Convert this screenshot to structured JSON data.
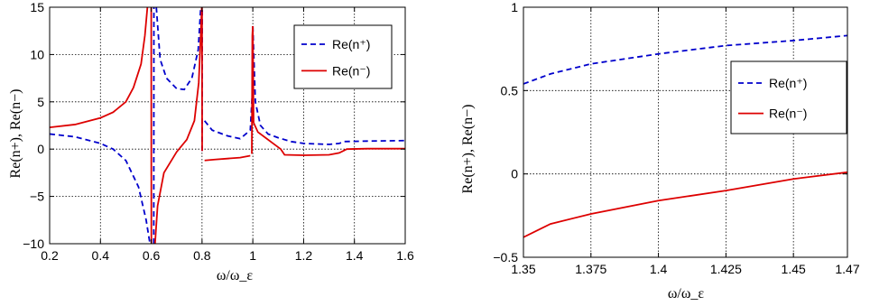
{
  "chart_data": [
    {
      "type": "line",
      "xlabel": "ω/ω_ε",
      "ylabel": "Re(n+), Re(n−)",
      "xlim": [
        0.2,
        1.6
      ],
      "ylim": [
        -10,
        15
      ],
      "xticks": [
        0.2,
        0.4,
        0.6,
        0.8,
        1,
        1.2,
        1.4,
        1.6
      ],
      "xtick_labels": [
        "0.2",
        "0.4",
        "0.6",
        "0.8",
        "1",
        "1.2",
        "1.4",
        "1.6"
      ],
      "yticks": [
        -10,
        -5,
        0,
        5,
        10,
        15
      ],
      "ytick_labels": [
        "−10",
        "−5",
        "0",
        "5",
        "10",
        "15"
      ],
      "grid": true,
      "legend_position": "top-right",
      "series": [
        {
          "name": "Re(n⁺)",
          "color": "#0000cc",
          "style": "dashed",
          "segments": [
            [
              [
                0.2,
                1.6
              ],
              [
                0.3,
                1.3
              ],
              [
                0.4,
                0.6
              ],
              [
                0.45,
                0
              ],
              [
                0.5,
                -1.2
              ],
              [
                0.55,
                -4
              ],
              [
                0.58,
                -7.5
              ],
              [
                0.595,
                -10
              ]
            ],
            [
              [
                0.61,
                -10
              ],
              [
                0.6105,
                15
              ]
            ],
            [
              [
                0.62,
                15
              ],
              [
                0.635,
                9.5
              ],
              [
                0.66,
                7.5
              ],
              [
                0.7,
                6.4
              ],
              [
                0.73,
                6.3
              ],
              [
                0.76,
                7.5
              ],
              [
                0.785,
                10.5
              ],
              [
                0.795,
                15
              ]
            ],
            [
              [
                0.8,
                -0.2
              ],
              [
                0.801,
                15
              ]
            ],
            [
              [
                0.81,
                3
              ],
              [
                0.84,
                2
              ],
              [
                0.9,
                1.4
              ],
              [
                0.95,
                1.1
              ],
              [
                0.99,
                2
              ],
              [
                0.998,
                6
              ],
              [
                1.0,
                13
              ]
            ],
            [
              [
                1.0,
                13
              ],
              [
                1.01,
                5
              ],
              [
                1.03,
                2.5
              ],
              [
                1.06,
                1.6
              ],
              [
                1.1,
                1.2
              ],
              [
                1.15,
                0.8
              ],
              [
                1.2,
                0.6
              ],
              [
                1.3,
                0.5
              ],
              [
                1.34,
                0.6
              ],
              [
                1.36,
                0.8
              ],
              [
                1.45,
                0.85
              ],
              [
                1.6,
                0.9
              ]
            ]
          ]
        },
        {
          "name": "Re(n⁻)",
          "color": "#dd0000",
          "style": "solid",
          "segments": [
            [
              [
                0.2,
                2.3
              ],
              [
                0.3,
                2.6
              ],
              [
                0.4,
                3.3
              ],
              [
                0.45,
                3.9
              ],
              [
                0.5,
                5
              ],
              [
                0.53,
                6.5
              ],
              [
                0.56,
                9
              ],
              [
                0.575,
                12
              ],
              [
                0.585,
                15
              ]
            ],
            [
              [
                0.6,
                15
              ],
              [
                0.6005,
                -10
              ]
            ],
            [
              [
                0.615,
                -10
              ],
              [
                0.625,
                -6
              ],
              [
                0.65,
                -2.5
              ],
              [
                0.7,
                -0.3
              ],
              [
                0.74,
                1
              ],
              [
                0.77,
                3
              ],
              [
                0.787,
                7
              ],
              [
                0.795,
                12
              ],
              [
                0.799,
                15
              ]
            ],
            [
              [
                0.8,
                15
              ],
              [
                0.8005,
                -0.2
              ]
            ],
            [
              [
                0.81,
                -1.2
              ],
              [
                0.85,
                -1.1
              ],
              [
                0.9,
                -1
              ],
              [
                0.95,
                -0.9
              ],
              [
                0.99,
                -0.7
              ]
            ],
            [
              [
                0.996,
                -0.5
              ],
              [
                0.998,
                12
              ],
              [
                1.0,
                13
              ]
            ],
            [
              [
                1.0,
                13
              ],
              [
                1.003,
                2.8
              ],
              [
                1.02,
                1.8
              ],
              [
                1.05,
                1.2
              ],
              [
                1.08,
                0.6
              ],
              [
                1.11,
                0
              ],
              [
                1.125,
                -0.6
              ],
              [
                1.2,
                -0.65
              ],
              [
                1.3,
                -0.6
              ],
              [
                1.34,
                -0.4
              ],
              [
                1.37,
                0
              ],
              [
                1.45,
                0.05
              ],
              [
                1.6,
                0.05
              ]
            ]
          ]
        }
      ]
    },
    {
      "type": "line",
      "xlabel": "ω/ω_ε",
      "ylabel": "Re(n+), Re(n−)",
      "xlim": [
        1.35,
        1.47
      ],
      "ylim": [
        -0.5,
        1
      ],
      "xticks": [
        1.35,
        1.375,
        1.4,
        1.425,
        1.45,
        1.47
      ],
      "xtick_labels": [
        "1.35",
        "1.375",
        "1.4",
        "1.425",
        "1.45",
        "1.47"
      ],
      "yticks": [
        -0.5,
        0,
        0.5,
        1
      ],
      "ytick_labels": [
        "−0.5",
        "0",
        "0.5",
        "1"
      ],
      "grid": true,
      "legend_position": "right",
      "series": [
        {
          "name": "Re(n⁺)",
          "color": "#0000cc",
          "style": "dashed",
          "segments": [
            [
              [
                1.35,
                0.54
              ],
              [
                1.36,
                0.6
              ],
              [
                1.375,
                0.66
              ],
              [
                1.4,
                0.72
              ],
              [
                1.425,
                0.77
              ],
              [
                1.45,
                0.8
              ],
              [
                1.47,
                0.83
              ]
            ]
          ]
        },
        {
          "name": "Re(n⁻)",
          "color": "#dd0000",
          "style": "solid",
          "segments": [
            [
              [
                1.35,
                -0.38
              ],
              [
                1.36,
                -0.3
              ],
              [
                1.375,
                -0.24
              ],
              [
                1.4,
                -0.16
              ],
              [
                1.425,
                -0.1
              ],
              [
                1.45,
                -0.03
              ],
              [
                1.47,
                0.01
              ]
            ]
          ]
        }
      ]
    }
  ]
}
